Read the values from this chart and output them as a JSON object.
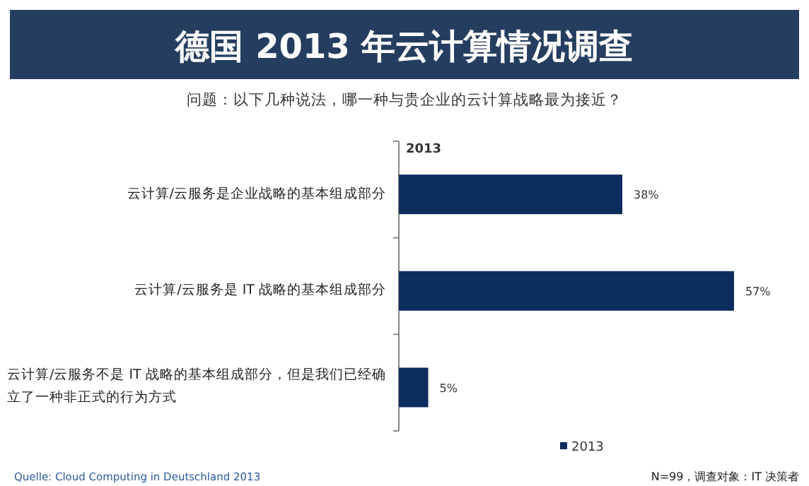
{
  "chart_data": {
    "type": "bar",
    "orientation": "horizontal",
    "title": "德国 2013 年云计算情况调查",
    "subtitle": "问题：以下几种说法，哪一种与贵企业的云计算战略最为接近？",
    "categories": [
      "云计算/云服务是企业战略的基本组成部分",
      "云计算/云服务是 IT 战略的基本组成部分",
      "云计算/云服务不是 IT 战略的基本组成部分，但是我们已经确立了一种非正式的行为方式"
    ],
    "series": [
      {
        "name": "2013",
        "color": "#0d2d5e",
        "values": [
          38,
          57,
          5
        ],
        "value_labels": [
          "38%",
          "57%",
          "5%"
        ]
      }
    ],
    "legend": "bottom",
    "annotations": [
      "2013",
      "Quelle: Cloud Computing in Deutschland 2013",
      "N=99，调查对象：IT 决策者"
    ]
  }
}
